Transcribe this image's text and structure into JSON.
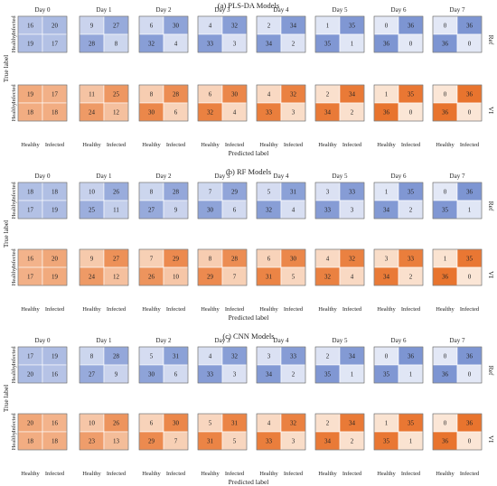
{
  "figure": {
    "ylabel": "True label",
    "xlabel": "Predicted label",
    "class_labels": [
      "Healthy",
      "Infected"
    ],
    "days": [
      "Day 0",
      "Day 1",
      "Day 2",
      "Day 3",
      "Day 4",
      "Day 5",
      "Day 6",
      "Day 7"
    ],
    "row_labels": [
      "Ref",
      "VI"
    ]
  },
  "colors": {
    "ref_light": "#e3e8f6",
    "ref_dark": "#7d95d2",
    "vi_light": "#fbe6d6",
    "vi_dark": "#e8742e",
    "vi_accent": "#d85fb6",
    "vi_green": "#7a8a2a"
  },
  "chart_data": [
    {
      "type": "heatmap",
      "title": "(a) PLS-DA Models",
      "xlabel": "Predicted label",
      "ylabel": "True label",
      "rows": [
        "Infected",
        "Healthy"
      ],
      "cols": [
        "Healthy",
        "Infected"
      ],
      "ref": [
        [
          [
            16,
            20
          ],
          [
            19,
            17
          ]
        ],
        [
          [
            9,
            27
          ],
          [
            28,
            8
          ]
        ],
        [
          [
            6,
            30
          ],
          [
            32,
            4
          ]
        ],
        [
          [
            4,
            32
          ],
          [
            33,
            3
          ]
        ],
        [
          [
            2,
            34
          ],
          [
            34,
            2
          ]
        ],
        [
          [
            1,
            35
          ],
          [
            35,
            1
          ]
        ],
        [
          [
            0,
            36
          ],
          [
            36,
            0
          ]
        ],
        [
          [
            0,
            36
          ],
          [
            36,
            0
          ]
        ]
      ],
      "vi": [
        [
          [
            19,
            17
          ],
          [
            18,
            18
          ]
        ],
        [
          [
            11,
            25
          ],
          [
            24,
            12
          ]
        ],
        [
          [
            8,
            28
          ],
          [
            30,
            6
          ]
        ],
        [
          [
            6,
            30
          ],
          [
            32,
            4
          ]
        ],
        [
          [
            4,
            32
          ],
          [
            33,
            3
          ]
        ],
        [
          [
            2,
            34
          ],
          [
            34,
            2
          ]
        ],
        [
          [
            1,
            35
          ],
          [
            36,
            0
          ]
        ],
        [
          [
            0,
            36
          ],
          [
            36,
            0
          ]
        ]
      ]
    },
    {
      "type": "heatmap",
      "title": "(b) RF Models",
      "xlabel": "Predicted label",
      "ylabel": "True label",
      "rows": [
        "Infected",
        "Healthy"
      ],
      "cols": [
        "Healthy",
        "Infected"
      ],
      "ref": [
        [
          [
            18,
            18
          ],
          [
            17,
            19
          ]
        ],
        [
          [
            10,
            26
          ],
          [
            25,
            11
          ]
        ],
        [
          [
            8,
            28
          ],
          [
            27,
            9
          ]
        ],
        [
          [
            7,
            29
          ],
          [
            30,
            6
          ]
        ],
        [
          [
            5,
            31
          ],
          [
            32,
            4
          ]
        ],
        [
          [
            3,
            33
          ],
          [
            33,
            3
          ]
        ],
        [
          [
            1,
            35
          ],
          [
            34,
            2
          ]
        ],
        [
          [
            0,
            36
          ],
          [
            35,
            1
          ]
        ]
      ],
      "vi": [
        [
          [
            16,
            20
          ],
          [
            17,
            19
          ]
        ],
        [
          [
            9,
            27
          ],
          [
            24,
            12
          ]
        ],
        [
          [
            7,
            29
          ],
          [
            26,
            10
          ]
        ],
        [
          [
            8,
            28
          ],
          [
            29,
            7
          ]
        ],
        [
          [
            6,
            30
          ],
          [
            31,
            5
          ]
        ],
        [
          [
            4,
            32
          ],
          [
            32,
            4
          ]
        ],
        [
          [
            3,
            33
          ],
          [
            34,
            2
          ]
        ],
        [
          [
            1,
            35
          ],
          [
            36,
            0
          ]
        ]
      ]
    },
    {
      "type": "heatmap",
      "title": "(c) CNN Models",
      "xlabel": "Predicted label",
      "ylabel": "True label",
      "rows": [
        "Infected",
        "Healthy"
      ],
      "cols": [
        "Healthy",
        "Infected"
      ],
      "ref": [
        [
          [
            17,
            19
          ],
          [
            20,
            16
          ]
        ],
        [
          [
            8,
            28
          ],
          [
            27,
            9
          ]
        ],
        [
          [
            5,
            31
          ],
          [
            30,
            6
          ]
        ],
        [
          [
            4,
            32
          ],
          [
            33,
            3
          ]
        ],
        [
          [
            3,
            33
          ],
          [
            34,
            2
          ]
        ],
        [
          [
            2,
            34
          ],
          [
            35,
            1
          ]
        ],
        [
          [
            0,
            36
          ],
          [
            35,
            1
          ]
        ],
        [
          [
            0,
            36
          ],
          [
            36,
            0
          ]
        ]
      ],
      "vi": [
        [
          [
            20,
            16
          ],
          [
            18,
            18
          ]
        ],
        [
          [
            10,
            26
          ],
          [
            23,
            13
          ]
        ],
        [
          [
            6,
            30
          ],
          [
            29,
            7
          ]
        ],
        [
          [
            5,
            31
          ],
          [
            31,
            5
          ]
        ],
        [
          [
            4,
            32
          ],
          [
            33,
            3
          ]
        ],
        [
          [
            2,
            34
          ],
          [
            34,
            2
          ]
        ],
        [
          [
            1,
            35
          ],
          [
            35,
            1
          ]
        ],
        [
          [
            0,
            36
          ],
          [
            36,
            0
          ]
        ]
      ]
    }
  ]
}
